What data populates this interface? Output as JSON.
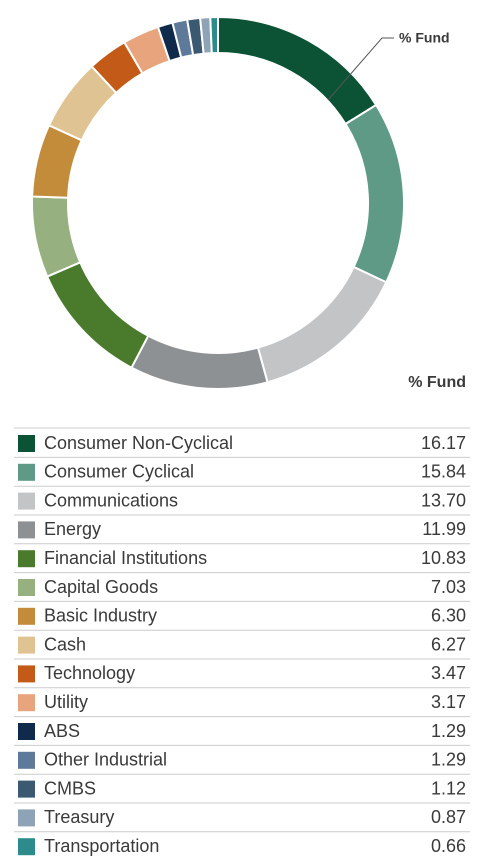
{
  "chart_data": {
    "type": "pie",
    "donut": true,
    "annotation": "% Fund",
    "column_header": "% Fund",
    "categories": [
      "Consumer Non-Cyclical",
      "Consumer Cyclical",
      "Communications",
      "Energy",
      "Financial Institutions",
      "Capital Goods",
      "Basic Industry",
      "Cash",
      "Technology",
      "Utility",
      "ABS",
      "Other Industrial",
      "CMBS",
      "Treasury",
      "Transportation"
    ],
    "values": [
      16.17,
      15.84,
      13.7,
      11.99,
      10.83,
      7.03,
      6.3,
      6.27,
      3.47,
      3.17,
      1.29,
      1.29,
      1.12,
      0.87,
      0.66
    ],
    "value_labels": [
      "16.17",
      "15.84",
      "13.70",
      "11.99",
      "10.83",
      "7.03",
      "6.30",
      "6.27",
      "3.47",
      "3.17",
      "1.29",
      "1.29",
      "1.12",
      "0.87",
      "0.66"
    ],
    "colors": [
      "#0b5334",
      "#5e9a85",
      "#c3c4c6",
      "#8e9194",
      "#4a7a2c",
      "#97b07f",
      "#c38c3a",
      "#e0c393",
      "#c45a18",
      "#e8a47c",
      "#0f2a4a",
      "#5e7a9a",
      "#3b5a72",
      "#8ea3b5",
      "#2e8b8b"
    ]
  }
}
